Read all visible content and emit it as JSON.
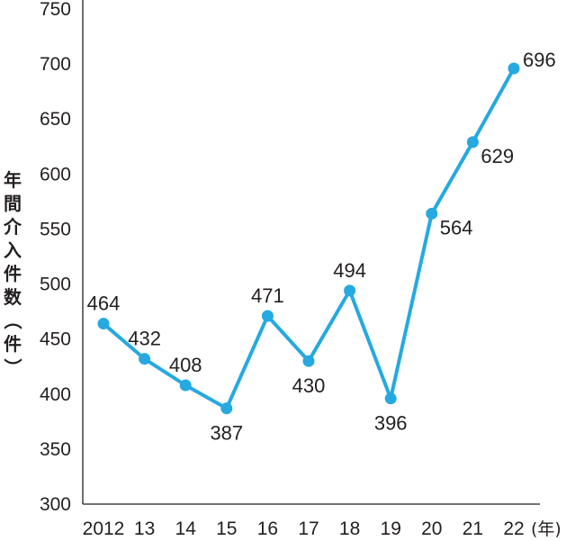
{
  "chart_data": {
    "type": "line",
    "title": "",
    "xlabel": "",
    "xunit": "(年)",
    "ylabel": "年間介入件数（件）",
    "ylim": [
      300,
      750
    ],
    "yticks": [
      300,
      350,
      400,
      450,
      500,
      550,
      600,
      650,
      700,
      750
    ],
    "categories": [
      "2012",
      "13",
      "14",
      "15",
      "16",
      "17",
      "18",
      "19",
      "20",
      "21",
      "22"
    ],
    "series": [
      {
        "values": [
          464,
          432,
          408,
          387,
          471,
          430,
          494,
          396,
          564,
          629,
          696
        ]
      }
    ],
    "grid": false,
    "colors": {
      "line": "#25a9e0",
      "marker": "#25a9e0",
      "axis": "#231f20",
      "text": "#231f20"
    }
  }
}
